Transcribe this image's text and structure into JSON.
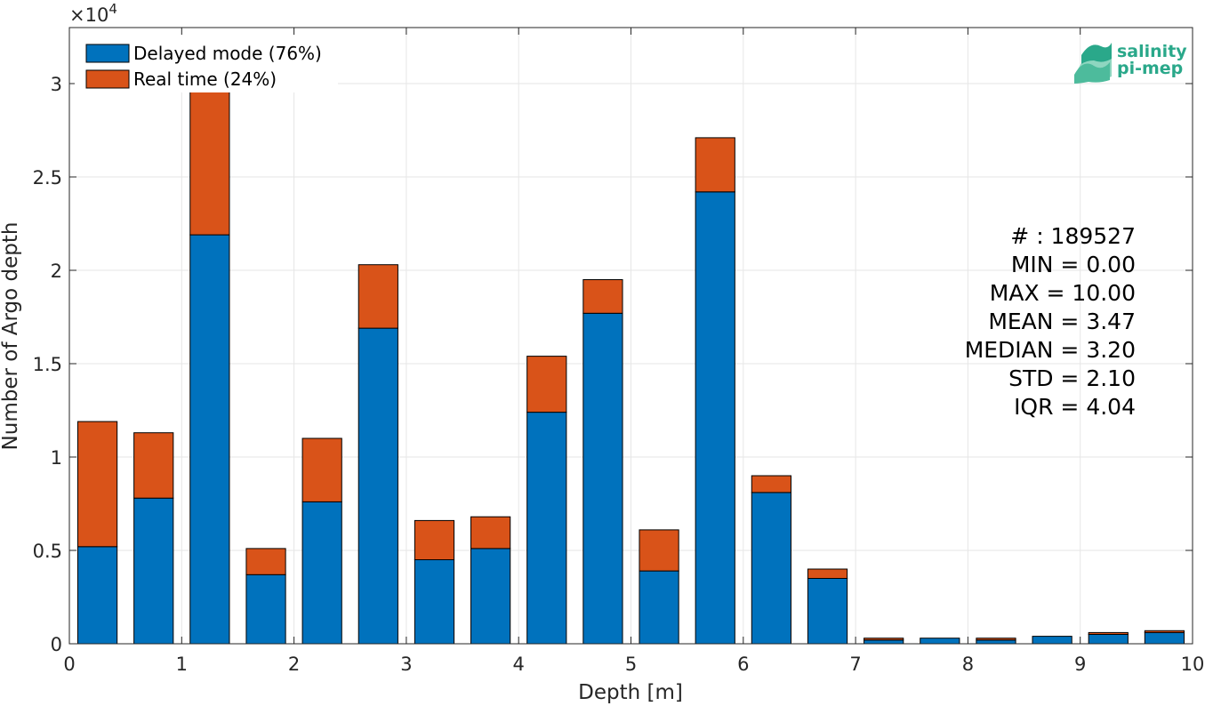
{
  "chart_data": {
    "type": "bar",
    "stacked": true,
    "xlabel": "Depth [m]",
    "ylabel": "Number of Argo depth",
    "xlim": [
      0,
      10
    ],
    "ylim": [
      0,
      33000
    ],
    "y_exponent_label": "×10",
    "y_exponent_power": "4",
    "x_ticks": [
      0,
      1,
      2,
      3,
      4,
      5,
      6,
      7,
      8,
      9,
      10
    ],
    "x_tick_labels": [
      "0",
      "1",
      "2",
      "3",
      "4",
      "5",
      "6",
      "7",
      "8",
      "9",
      "10"
    ],
    "y_ticks": [
      0,
      5000,
      10000,
      15000,
      20000,
      25000,
      30000
    ],
    "y_tick_labels": [
      "0",
      "0.5",
      "1",
      "1.5",
      "2",
      "2.5",
      "3"
    ],
    "grid": true,
    "legend_position": "top-left",
    "bin_centers": [
      0.25,
      0.75,
      1.25,
      1.75,
      2.25,
      2.75,
      3.25,
      3.75,
      4.25,
      4.75,
      5.25,
      5.75,
      6.25,
      6.75,
      7.25,
      7.75,
      8.25,
      8.75,
      9.25,
      9.75
    ],
    "bar_width": 0.35,
    "series": [
      {
        "name": "Delayed mode (76%)",
        "color": "#0072BD",
        "values": [
          5200,
          7800,
          21900,
          3700,
          7600,
          16900,
          4500,
          5100,
          12400,
          17700,
          3900,
          24200,
          8100,
          3500,
          200,
          300,
          200,
          400,
          500,
          600
        ]
      },
      {
        "name": "Real time (24%)",
        "color": "#D95319",
        "values": [
          6700,
          3500,
          10600,
          1400,
          3400,
          3400,
          2100,
          1700,
          3000,
          1800,
          2200,
          2900,
          900,
          500,
          100,
          0,
          100,
          0,
          100,
          100
        ]
      }
    ],
    "stats_lines": [
      "# : 189527",
      "MIN = 0.00",
      "MAX =  10.00",
      "MEAN = 3.47",
      "MEDIAN = 3.20",
      "STD = 2.10",
      "IQR = 4.04"
    ]
  },
  "logo": {
    "line1": "salinity",
    "line2": "pi-mep",
    "color": "#2aa88a"
  }
}
